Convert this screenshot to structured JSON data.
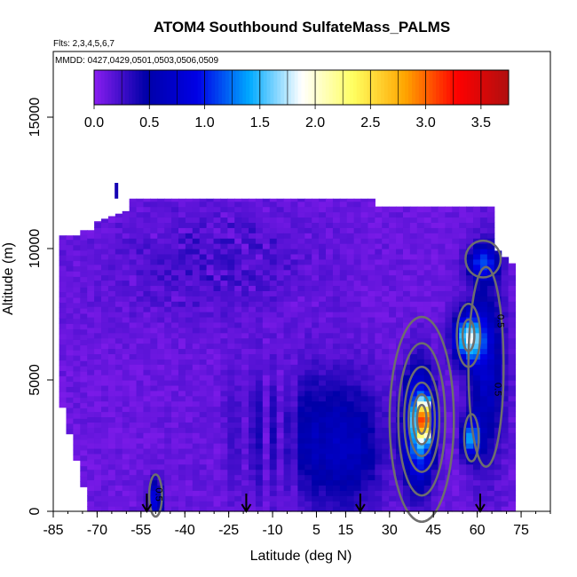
{
  "chart_data": {
    "type": "heatmap",
    "title": "ATOM4 Southbound SulfateMass_PALMS",
    "subtitle_flights": "Flts: 2,3,4,5,6,7",
    "subtitle_dates": "MMDD: 0427,0429,0501,0503,0506,0509",
    "xlabel": "Latitude (deg N)",
    "ylabel": "Altitude (m)",
    "xlim": [
      -85,
      85
    ],
    "ylim": [
      0,
      17500
    ],
    "x_ticks": [
      -85,
      -70,
      -55,
      -40,
      -25,
      -10,
      5,
      15,
      30,
      45,
      60,
      75
    ],
    "y_ticks": [
      0,
      5000,
      10000,
      15000
    ],
    "colorbar": {
      "min": 0,
      "max": 3.75,
      "ticks": [
        "0.0",
        "0.5",
        "1.0",
        "1.5",
        "2.0",
        "2.5",
        "3.0",
        "3.5"
      ],
      "colors": [
        "#8a1ef0",
        "#0000a8",
        "#0000e6",
        "#00aaff",
        "#ffffff",
        "#ffff60",
        "#ffa500",
        "#ff0000",
        "#b01010"
      ]
    },
    "arrows_latitude": [
      -53,
      -19,
      20,
      61
    ],
    "contour_labels": [
      "0.5",
      "0.5",
      "0.5"
    ],
    "hotspot": {
      "latitude": 42,
      "altitude": 3500,
      "value": 3.6
    }
  }
}
